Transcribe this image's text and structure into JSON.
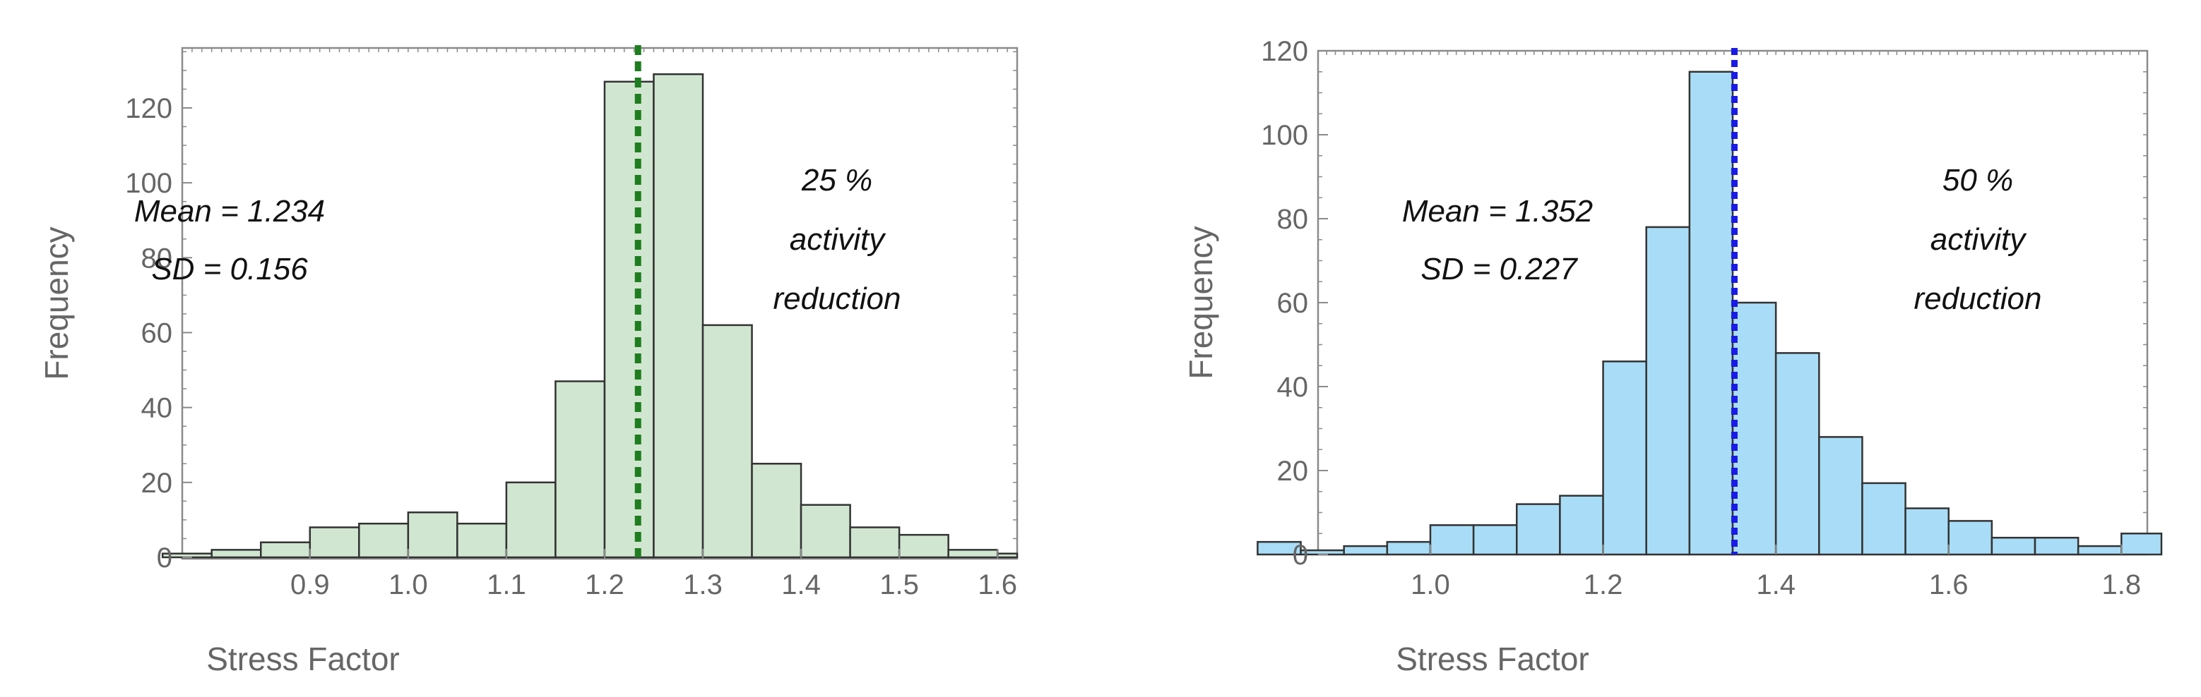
{
  "figure": {
    "panels_count": 2
  },
  "chart_data": [
    {
      "type": "bar",
      "subtype": "histogram",
      "title": "",
      "xlabel": "Stress Factor",
      "ylabel": "Frequency",
      "xlim": [
        0.77,
        1.62
      ],
      "ylim": [
        0,
        136
      ],
      "xticks": [
        0.9,
        1.0,
        1.1,
        1.2,
        1.3,
        1.4,
        1.5,
        1.6
      ],
      "xtick_labels": [
        "0.9",
        "1.0",
        "1.1",
        "1.2",
        "1.3",
        "1.4",
        "1.5",
        "1.6"
      ],
      "yticks": [
        0,
        20,
        40,
        60,
        80,
        100,
        120
      ],
      "ytick_labels": [
        "0",
        "20",
        "40",
        "60",
        "80",
        "100",
        "120"
      ],
      "bin_width": 0.05,
      "bins": [
        {
          "start": 0.75,
          "end": 0.8,
          "count": 1
        },
        {
          "start": 0.8,
          "end": 0.85,
          "count": 2
        },
        {
          "start": 0.85,
          "end": 0.9,
          "count": 4
        },
        {
          "start": 0.9,
          "end": 0.95,
          "count": 8
        },
        {
          "start": 0.95,
          "end": 1.0,
          "count": 9
        },
        {
          "start": 1.0,
          "end": 1.05,
          "count": 12
        },
        {
          "start": 1.05,
          "end": 1.1,
          "count": 9
        },
        {
          "start": 1.1,
          "end": 1.15,
          "count": 20
        },
        {
          "start": 1.15,
          "end": 1.2,
          "count": 47
        },
        {
          "start": 1.2,
          "end": 1.25,
          "count": 127
        },
        {
          "start": 1.25,
          "end": 1.3,
          "count": 129
        },
        {
          "start": 1.3,
          "end": 1.35,
          "count": 62
        },
        {
          "start": 1.35,
          "end": 1.4,
          "count": 25
        },
        {
          "start": 1.4,
          "end": 1.45,
          "count": 14
        },
        {
          "start": 1.45,
          "end": 1.5,
          "count": 8
        },
        {
          "start": 1.5,
          "end": 1.55,
          "count": 6
        },
        {
          "start": 1.55,
          "end": 1.6,
          "count": 2
        },
        {
          "start": 1.6,
          "end": 1.65,
          "count": 1
        }
      ],
      "mean_line": {
        "value": 1.234,
        "style": "dashed"
      },
      "annotations": {
        "mean_text": "Mean = 1.234",
        "sd_text": "SD = 0.156",
        "label_lines": [
          "25 %",
          "activity",
          "reduction"
        ]
      },
      "colors": {
        "bar_fill": "#d1e6d1",
        "bar_stroke": "#333333",
        "mean_line": "#1e7d1e",
        "axis": "#555555",
        "tick_text": "#666666"
      }
    },
    {
      "type": "bar",
      "subtype": "histogram",
      "title": "",
      "xlabel": "Stress Factor",
      "ylabel": "Frequency",
      "xlim": [
        0.87,
        1.83
      ],
      "ylim": [
        0,
        120
      ],
      "xticks": [
        1.0,
        1.2,
        1.4,
        1.6,
        1.8
      ],
      "xtick_labels": [
        "1.0",
        "1.2",
        "1.4",
        "1.6",
        "1.8"
      ],
      "yticks": [
        0,
        20,
        40,
        60,
        80,
        100,
        120
      ],
      "ytick_labels": [
        "0",
        "20",
        "40",
        "60",
        "80",
        "100",
        "120"
      ],
      "bin_width": 0.05,
      "bins": [
        {
          "start": 0.8,
          "end": 0.85,
          "count": 3
        },
        {
          "start": 0.85,
          "end": 0.9,
          "count": 1
        },
        {
          "start": 0.9,
          "end": 0.95,
          "count": 2
        },
        {
          "start": 0.95,
          "end": 1.0,
          "count": 3
        },
        {
          "start": 1.0,
          "end": 1.05,
          "count": 7
        },
        {
          "start": 1.05,
          "end": 1.1,
          "count": 7
        },
        {
          "start": 1.1,
          "end": 1.15,
          "count": 12
        },
        {
          "start": 1.15,
          "end": 1.2,
          "count": 14
        },
        {
          "start": 1.2,
          "end": 1.25,
          "count": 46
        },
        {
          "start": 1.25,
          "end": 1.3,
          "count": 78
        },
        {
          "start": 1.3,
          "end": 1.35,
          "count": 115
        },
        {
          "start": 1.35,
          "end": 1.4,
          "count": 60
        },
        {
          "start": 1.4,
          "end": 1.45,
          "count": 48
        },
        {
          "start": 1.45,
          "end": 1.5,
          "count": 28
        },
        {
          "start": 1.5,
          "end": 1.55,
          "count": 17
        },
        {
          "start": 1.55,
          "end": 1.6,
          "count": 11
        },
        {
          "start": 1.6,
          "end": 1.65,
          "count": 8
        },
        {
          "start": 1.65,
          "end": 1.7,
          "count": 4
        },
        {
          "start": 1.7,
          "end": 1.75,
          "count": 4
        },
        {
          "start": 1.75,
          "end": 1.8,
          "count": 2
        },
        {
          "start": 1.8,
          "end": 1.85,
          "count": 5
        }
      ],
      "mean_line": {
        "value": 1.352,
        "style": "dashed"
      },
      "annotations": {
        "mean_text": "Mean = 1.352",
        "sd_text": "SD = 0.227",
        "label_lines": [
          "50 %",
          "activity",
          "reduction"
        ]
      },
      "colors": {
        "bar_fill": "#a9ddf7",
        "bar_stroke": "#333333",
        "mean_line": "#1a1ae6",
        "axis": "#555555",
        "tick_text": "#666666"
      }
    }
  ]
}
